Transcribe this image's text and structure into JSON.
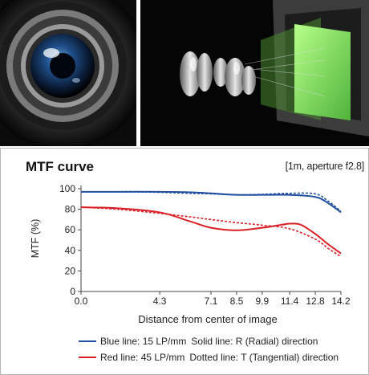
{
  "chart_data": {
    "type": "line",
    "title": "MTF curve",
    "subtitle": "[1m, aperture f2.8]",
    "xlabel": "Distance from center of image",
    "ylabel": "MTF (%)",
    "x_ticks": [
      0.0,
      4.3,
      7.1,
      8.5,
      9.9,
      11.4,
      12.8,
      14.2
    ],
    "x_tick_labels": [
      "0.0",
      "4.3",
      "7.1",
      "8.5",
      "9.9",
      "11.4",
      "12.8",
      "14.2"
    ],
    "y_ticks": [
      0,
      20,
      40,
      60,
      80,
      100
    ],
    "y_tick_labels": [
      "0",
      "20",
      "40",
      "60",
      "80",
      "100"
    ],
    "xlim": [
      0,
      14.2
    ],
    "ylim": [
      0,
      100
    ],
    "grid": false,
    "series": [
      {
        "color": "#1f4fa0",
        "style": "solid",
        "x": [
          0,
          2,
          4.3,
          6,
          7.1,
          8.5,
          9.9,
          11.4,
          12.8,
          13.5,
          14.2
        ],
        "y": [
          97,
          97,
          97,
          96.5,
          95.5,
          94,
          94,
          94,
          92,
          86,
          77
        ]
      },
      {
        "color": "#1f4fa0",
        "style": "dotted",
        "x": [
          0,
          2,
          4.3,
          6,
          7.1,
          8.5,
          9.9,
          11.4,
          12.8,
          13.5,
          14.2
        ],
        "y": [
          97,
          97,
          96.5,
          95.5,
          95,
          94,
          94.5,
          95.5,
          95,
          88,
          78
        ]
      },
      {
        "color": "#d91f26",
        "style": "solid",
        "x": [
          0,
          2,
          4.3,
          6,
          7.1,
          8.5,
          9.9,
          11,
          11.4,
          12,
          12.8,
          13.5,
          14.2
        ],
        "y": [
          82,
          81,
          77,
          68,
          62,
          59.5,
          62,
          65,
          66,
          65,
          56,
          46,
          37
        ]
      },
      {
        "color": "#d91f26",
        "style": "dotted",
        "x": [
          0,
          2,
          4.3,
          6,
          7.1,
          8.5,
          9.9,
          11.4,
          12.8,
          13.5,
          14.2
        ],
        "y": [
          82,
          80,
          76,
          72.5,
          70,
          67,
          64.5,
          61,
          51,
          42,
          34
        ]
      }
    ],
    "legend": [
      {
        "color": "#1f4fa0",
        "text_a": "Blue line: 15 LP/mm",
        "text_b": "Solid line: R (Radial) direction"
      },
      {
        "color": "#d91f26",
        "text_a": "Red line: 45 LP/mm",
        "text_b": "Dotted line: T (Tangential) direction"
      }
    ]
  }
}
